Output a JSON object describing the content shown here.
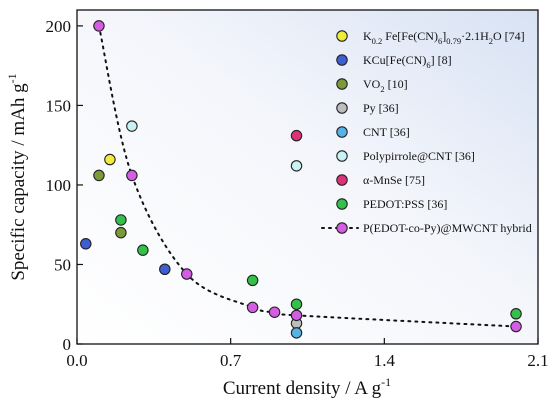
{
  "chart_data": {
    "type": "scatter",
    "xlabel": "Current density / A g",
    "xlabel_sup": "-1",
    "ylabel": "Specific capacity / mAh g",
    "ylabel_sup": "-1",
    "xlim": [
      0,
      2.1
    ],
    "ylim": [
      0,
      210
    ],
    "xticks": [
      "0.0",
      "0.7",
      "1.4",
      "2.1"
    ],
    "yticks": [
      "0",
      "50",
      "100",
      "150",
      "200"
    ],
    "xtick_values": [
      0,
      0.7,
      1.4,
      2.1
    ],
    "ytick_values": [
      0,
      50,
      100,
      150,
      200
    ],
    "grid": false,
    "legend_position": "top-right",
    "series": [
      {
        "name": "K0.2 Fe[Fe(CN)6]0.79·2.1H2O [74]",
        "color": "#f0ec3a",
        "x": [
          0.15
        ],
        "y": [
          116
        ]
      },
      {
        "name": "KCu[Fe(CN)6] [8]",
        "color": "#3f5ed3",
        "x": [
          0.04,
          0.4
        ],
        "y": [
          63,
          47
        ]
      },
      {
        "name": "VO2 [10]",
        "color": "#7d9a3b",
        "x": [
          0.1,
          0.2
        ],
        "y": [
          106,
          70
        ]
      },
      {
        "name": "Py [36]",
        "color": "#bdbdbd",
        "x": [
          1.0
        ],
        "y": [
          13
        ]
      },
      {
        "name": "CNT [36]",
        "color": "#55b3e6",
        "x": [
          1.0
        ],
        "y": [
          7
        ]
      },
      {
        "name": "Polypirrole@CNT [36]",
        "color": "#c8f2f4",
        "x": [
          0.25,
          1.0
        ],
        "y": [
          137,
          112
        ]
      },
      {
        "name": "α-MnSe [75]",
        "color": "#dd3179",
        "x": [
          1.0
        ],
        "y": [
          131
        ]
      },
      {
        "name": "PEDOT:PSS [36]",
        "color": "#33c14a",
        "x": [
          0.2,
          0.3,
          0.8,
          1.0,
          2.0
        ],
        "y": [
          78,
          59,
          40,
          25,
          19
        ]
      },
      {
        "name": "P(EDOT-co-Py)@MWCNT hybrid",
        "color": "#d45ee3",
        "x": [
          0.1,
          0.25,
          0.5,
          0.8,
          0.9,
          1.0,
          2.0
        ],
        "y": [
          200,
          106,
          44,
          23,
          20,
          18,
          11
        ],
        "line": "dotted"
      }
    ],
    "legend": [
      {
        "parts": [
          [
            "K",
            ""
          ],
          [
            "0.2",
            "sub"
          ],
          [
            " Fe[Fe(CN)",
            ""
          ],
          [
            "6",
            "sub"
          ],
          [
            "]",
            ""
          ],
          [
            "0.79",
            "sub"
          ],
          [
            "·2.1H",
            ""
          ],
          [
            "2",
            "sub"
          ],
          [
            "O [74]",
            ""
          ]
        ]
      },
      {
        "parts": [
          [
            "KCu[Fe(CN)",
            ""
          ],
          [
            "6",
            "sub"
          ],
          [
            "] [8]",
            ""
          ]
        ]
      },
      {
        "parts": [
          [
            "VO",
            ""
          ],
          [
            "2",
            "sub"
          ],
          [
            " [10]",
            ""
          ]
        ]
      },
      {
        "parts": [
          [
            "Py [36]",
            ""
          ]
        ]
      },
      {
        "parts": [
          [
            "CNT [36]",
            ""
          ]
        ]
      },
      {
        "parts": [
          [
            "Polypirrole@CNT [36]",
            ""
          ]
        ]
      },
      {
        "parts": [
          [
            "α-MnSe [75]",
            ""
          ]
        ]
      },
      {
        "parts": [
          [
            "PEDOT:PSS [36]",
            ""
          ]
        ]
      },
      {
        "parts": [
          [
            "P(EDOT-co-Py)@MWCNT hybrid",
            ""
          ]
        ]
      }
    ]
  }
}
